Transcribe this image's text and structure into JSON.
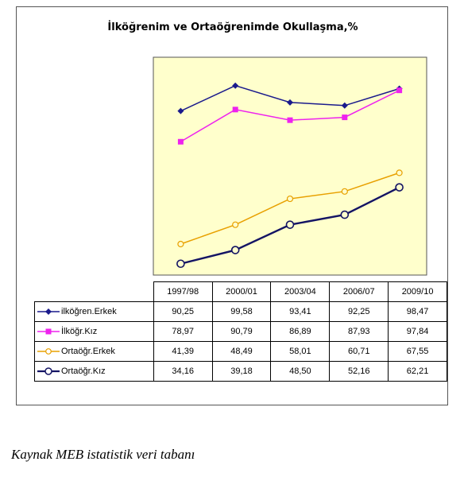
{
  "chart_data": {
    "type": "line",
    "title": "İlköğrenim ve Ortaöğrenimde Okullaşma,%",
    "categories": [
      "1997/98",
      "2000/01",
      "2003/04",
      "2006/07",
      "2009/10"
    ],
    "ylim": [
      30,
      110
    ],
    "grid": false,
    "legend": "table-left",
    "series": [
      {
        "name": "ilköğren.Erkek",
        "color": "#1a1a8c",
        "marker": "diamond",
        "values": [
          90.25,
          99.58,
          93.41,
          92.25,
          98.47
        ]
      },
      {
        "name": "İlköğr.Kız",
        "color": "#ee22ee",
        "marker": "square",
        "values": [
          78.97,
          90.79,
          86.89,
          87.93,
          97.84
        ]
      },
      {
        "name": "Ortaöğr.Erkek",
        "color": "#e8a000",
        "marker": "circle-open",
        "values": [
          41.39,
          48.49,
          58.01,
          60.71,
          67.55
        ]
      },
      {
        "name": "Ortaöğr.Kız",
        "color": "#141464",
        "marker": "circle-open-thick",
        "values": [
          34.16,
          39.18,
          48.5,
          52.16,
          62.21
        ]
      }
    ],
    "table": [
      [
        "90,25",
        "99,58",
        "93,41",
        "92,25",
        "98,47"
      ],
      [
        "78,97",
        "90,79",
        "86,89",
        "87,93",
        "97,84"
      ],
      [
        "41,39",
        "48,49",
        "58,01",
        "60,71",
        "67,55"
      ],
      [
        "34,16",
        "39,18",
        "48,50",
        "52,16",
        "62,21"
      ]
    ],
    "plot_background": "#ffffcc"
  },
  "source_note": "Kaynak MEB istatistik veri tabanı"
}
